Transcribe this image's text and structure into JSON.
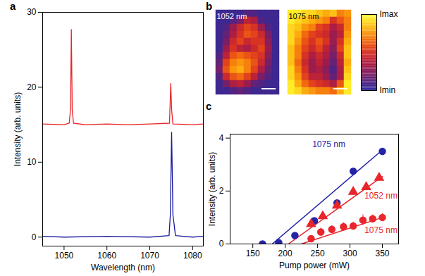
{
  "chart_data": [
    {
      "type": "line",
      "panel": "a",
      "xlabel": "Wavelength (nm)",
      "ylabel": "Intensity (arb. units)",
      "xlim": [
        1045,
        1082.5
      ],
      "ylim": [
        -1.2,
        30
      ],
      "xticks": [
        1050,
        1060,
        1070,
        1080
      ],
      "yticks": [
        0,
        10,
        20,
        30
      ],
      "series": [
        {
          "color": "#e8262b",
          "x": [
            1045,
            1050,
            1051.2,
            1051.5,
            1051.7,
            1051.9,
            1052.2,
            1055,
            1060,
            1065,
            1070,
            1074.6,
            1074.9,
            1075.1,
            1075.4,
            1080,
            1082.5
          ],
          "values": [
            15.1,
            15.0,
            15.2,
            17,
            27.7,
            17,
            15.2,
            15.0,
            15.1,
            15.0,
            15.1,
            15.2,
            20.5,
            17,
            15.1,
            15.0,
            15.1
          ]
        },
        {
          "color": "#1a1aa0",
          "x": [
            1045,
            1050,
            1060,
            1070,
            1074.5,
            1074.8,
            1075.1,
            1075.4,
            1076,
            1080,
            1082.5
          ],
          "values": [
            0.1,
            0,
            0.1,
            0,
            0.2,
            3,
            14,
            3,
            0.2,
            0,
            0.1
          ]
        }
      ]
    },
    {
      "type": "heatmap",
      "panel": "b",
      "maps": [
        {
          "label": "1052 nm",
          "cells": [
            [
              0.05,
              0.05,
              0.05,
              0.05,
              0.1,
              0.1,
              0.05,
              0.05,
              0.05
            ],
            [
              0.05,
              0.05,
              0.1,
              0.2,
              0.4,
              0.35,
              0.1,
              0.05,
              0.05
            ],
            [
              0.05,
              0.1,
              0.3,
              0.45,
              0.55,
              0.5,
              0.3,
              0.1,
              0.05
            ],
            [
              0.05,
              0.15,
              0.35,
              0.5,
              0.6,
              0.55,
              0.45,
              0.2,
              0.05
            ],
            [
              0.05,
              0.2,
              0.45,
              0.55,
              0.45,
              0.5,
              0.5,
              0.25,
              0.05
            ],
            [
              0.05,
              0.3,
              0.5,
              0.4,
              0.35,
              0.45,
              0.55,
              0.3,
              0.05
            ],
            [
              0.1,
              0.4,
              0.6,
              0.65,
              0.6,
              0.55,
              0.5,
              0.25,
              0.05
            ],
            [
              0.15,
              0.55,
              0.7,
              0.75,
              0.7,
              0.6,
              0.45,
              0.2,
              0.05
            ],
            [
              0.2,
              0.6,
              0.75,
              0.8,
              0.7,
              0.55,
              0.35,
              0.15,
              0.05
            ],
            [
              0.1,
              0.45,
              0.6,
              0.65,
              0.55,
              0.4,
              0.2,
              0.1,
              0.05
            ],
            [
              0.05,
              0.2,
              0.35,
              0.4,
              0.3,
              0.15,
              0.1,
              0.05,
              0.05
            ],
            [
              0.05,
              0.05,
              0.1,
              0.15,
              0.1,
              0.05,
              0.05,
              0.05,
              0.05
            ]
          ]
        },
        {
          "label": "1075 nm",
          "cells": [
            [
              0.95,
              0.95,
              0.9,
              0.9,
              0.85,
              0.8,
              0.85,
              0.7,
              0.75
            ],
            [
              0.95,
              0.9,
              0.85,
              0.8,
              0.75,
              0.7,
              0.5,
              0.6,
              0.7
            ],
            [
              0.9,
              0.85,
              0.75,
              0.7,
              0.55,
              0.5,
              0.35,
              0.45,
              0.7
            ],
            [
              0.9,
              0.8,
              0.65,
              0.55,
              0.5,
              0.45,
              0.3,
              0.4,
              0.75
            ],
            [
              0.9,
              0.75,
              0.6,
              0.5,
              0.6,
              0.5,
              0.3,
              0.5,
              0.8
            ],
            [
              0.85,
              0.7,
              0.55,
              0.45,
              0.55,
              0.4,
              0.25,
              0.55,
              0.85
            ],
            [
              0.85,
              0.7,
              0.5,
              0.35,
              0.45,
              0.35,
              0.2,
              0.45,
              0.85
            ],
            [
              0.85,
              0.65,
              0.45,
              0.3,
              0.4,
              0.3,
              0.15,
              0.4,
              0.8
            ],
            [
              0.9,
              0.7,
              0.5,
              0.3,
              0.35,
              0.25,
              0.1,
              0.35,
              0.85
            ],
            [
              0.9,
              0.75,
              0.55,
              0.4,
              0.4,
              0.3,
              0.15,
              0.35,
              0.9
            ],
            [
              0.95,
              0.8,
              0.65,
              0.55,
              0.5,
              0.45,
              0.35,
              0.6,
              0.95
            ],
            [
              0.95,
              0.9,
              0.8,
              0.75,
              0.7,
              0.7,
              0.65,
              0.8,
              0.95
            ]
          ]
        }
      ],
      "colorbar_lim": [
        0,
        1
      ],
      "colorbar_ticks": [
        {
          "value": 1,
          "label": "Imax"
        },
        {
          "value": 0,
          "label": "Imin"
        }
      ]
    },
    {
      "type": "scatter",
      "panel": "c",
      "xlabel": "Pump power (mW)",
      "ylabel": "Intensity (arb. units)",
      "xlim": [
        115,
        375
      ],
      "ylim": [
        0,
        4.15
      ],
      "xticks": [
        150,
        200,
        250,
        300,
        350
      ],
      "yticks": [
        0,
        2,
        4
      ],
      "series": [
        {
          "name": "1075 nm",
          "color": "#2424a8",
          "marker": "circle",
          "x": [
            165,
            190,
            215,
            245,
            280,
            305,
            350
          ],
          "values": [
            0,
            0.05,
            0.32,
            0.88,
            1.55,
            2.75,
            3.5
          ],
          "fit_x": [
            180,
            350
          ],
          "fit_values": [
            0,
            3.55
          ]
        },
        {
          "name": "1052 nm",
          "color": "#e8262b",
          "marker": "triangle",
          "x": [
            240,
            258,
            280,
            305,
            325,
            345
          ],
          "values": [
            0.75,
            1.05,
            1.45,
            1.97,
            2.15,
            2.5
          ],
          "errors": [
            0.1,
            0.1,
            0.1,
            0.12,
            0.12,
            0.12
          ],
          "fit_x": [
            205,
            350
          ],
          "fit_values": [
            0,
            2.55
          ]
        },
        {
          "name": "1075 nm",
          "color": "#e8262b",
          "marker": "circle",
          "x": [
            240,
            255,
            272,
            290,
            305,
            320,
            335,
            350
          ],
          "values": [
            0.2,
            0.45,
            0.55,
            0.65,
            0.68,
            0.9,
            0.95,
            1.0
          ],
          "errors": [
            0.12,
            0.15,
            0.15,
            0.15,
            0.15,
            0.2,
            0.15,
            0.15
          ],
          "fit_x": [
            225,
            350
          ],
          "fit_values": [
            0,
            1.0
          ]
        }
      ]
    }
  ]
}
